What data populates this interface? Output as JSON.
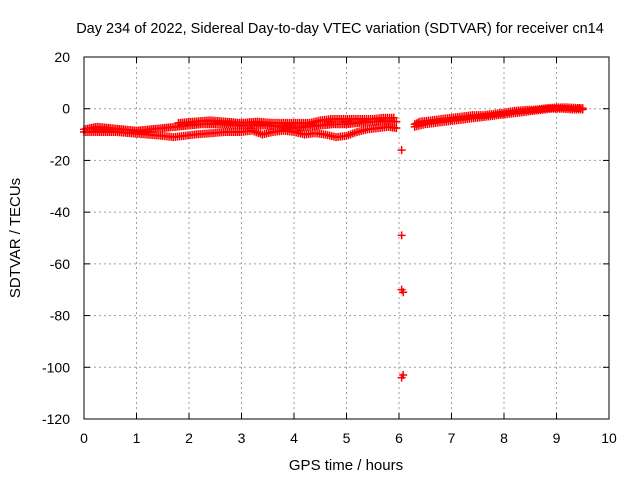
{
  "chart_data": {
    "type": "scatter",
    "title": "Day 234 of 2022, Sidereal Day-to-day VTEC variation (SDTVAR) for receiver cn14",
    "xlabel": "GPS time / hours",
    "ylabel": "SDTVAR / TECUs",
    "xlim": [
      0,
      10
    ],
    "ylim": [
      -120,
      20
    ],
    "xticks": [
      0,
      1,
      2,
      3,
      4,
      5,
      6,
      7,
      8,
      9,
      10
    ],
    "yticks": [
      20,
      0,
      -20,
      -40,
      -60,
      -80,
      -100,
      -120
    ],
    "grid": true,
    "marker": "plus",
    "color": "#ff0000",
    "series": [
      {
        "name": "main-band",
        "points": [
          [
            0.0,
            -8
          ],
          [
            0.25,
            -7
          ],
          [
            0.5,
            -7.5
          ],
          [
            0.75,
            -8
          ],
          [
            1.0,
            -8.5
          ],
          [
            1.25,
            -8
          ],
          [
            1.5,
            -7.5
          ],
          [
            1.75,
            -7
          ],
          [
            2.0,
            -6.5
          ],
          [
            2.25,
            -6
          ],
          [
            2.5,
            -6
          ],
          [
            2.75,
            -6
          ],
          [
            3.0,
            -6.5
          ],
          [
            3.25,
            -6.5
          ],
          [
            3.5,
            -6.5
          ],
          [
            3.75,
            -7
          ],
          [
            4.0,
            -7.5
          ],
          [
            4.25,
            -7
          ],
          [
            4.5,
            -6.5
          ],
          [
            4.75,
            -6
          ],
          [
            5.0,
            -6
          ],
          [
            5.25,
            -5.5
          ],
          [
            5.5,
            -5
          ],
          [
            5.75,
            -5
          ],
          [
            5.95,
            -5
          ]
        ]
      },
      {
        "name": "lower-track",
        "points": [
          [
            0.0,
            -9
          ],
          [
            0.3,
            -9
          ],
          [
            0.6,
            -9
          ],
          [
            0.9,
            -9.5
          ],
          [
            1.2,
            -10
          ],
          [
            1.5,
            -10.5
          ],
          [
            1.7,
            -11
          ],
          [
            1.9,
            -10.5
          ],
          [
            2.1,
            -10
          ],
          [
            2.4,
            -9.5
          ],
          [
            2.7,
            -9
          ],
          [
            3.0,
            -9
          ],
          [
            3.2,
            -8.5
          ],
          [
            3.4,
            -10
          ],
          [
            3.6,
            -9
          ],
          [
            3.8,
            -8.5
          ],
          [
            4.0,
            -9
          ],
          [
            4.2,
            -10
          ],
          [
            4.4,
            -9.5
          ],
          [
            4.6,
            -10
          ],
          [
            4.8,
            -11
          ],
          [
            5.0,
            -10.5
          ],
          [
            5.2,
            -9
          ],
          [
            5.4,
            -8
          ],
          [
            5.6,
            -7.5
          ],
          [
            5.8,
            -7
          ],
          [
            5.95,
            -7.5
          ]
        ]
      },
      {
        "name": "upper-track",
        "points": [
          [
            1.8,
            -5.5
          ],
          [
            2.1,
            -5
          ],
          [
            2.4,
            -4.5
          ],
          [
            2.7,
            -5
          ],
          [
            3.0,
            -5.5
          ],
          [
            3.3,
            -5
          ],
          [
            3.6,
            -5.5
          ],
          [
            4.3,
            -5.5
          ],
          [
            4.5,
            -4.5
          ],
          [
            4.7,
            -4
          ],
          [
            4.9,
            -4
          ],
          [
            5.1,
            -4
          ],
          [
            5.3,
            -4
          ],
          [
            5.5,
            -4
          ],
          [
            5.7,
            -3.5
          ],
          [
            5.9,
            -3.5
          ]
        ]
      },
      {
        "name": "after-gap",
        "points": [
          [
            6.3,
            -6
          ],
          [
            6.4,
            -5
          ],
          [
            6.6,
            -4.5
          ],
          [
            6.8,
            -4
          ],
          [
            7.0,
            -3.5
          ],
          [
            7.2,
            -3
          ],
          [
            7.4,
            -2.5
          ],
          [
            7.6,
            -2.5
          ],
          [
            7.8,
            -2
          ],
          [
            8.0,
            -1.5
          ],
          [
            8.2,
            -0.8
          ],
          [
            8.4,
            -0.5
          ],
          [
            8.6,
            -0.3
          ],
          [
            8.8,
            0.2
          ],
          [
            9.0,
            0.5
          ],
          [
            9.2,
            0.5
          ],
          [
            9.4,
            0.3
          ],
          [
            9.5,
            0.2
          ]
        ]
      },
      {
        "name": "after-gap-lower",
        "points": [
          [
            6.3,
            -7
          ],
          [
            6.5,
            -6
          ],
          [
            6.7,
            -5.5
          ],
          [
            6.9,
            -5
          ],
          [
            7.1,
            -4.5
          ],
          [
            7.3,
            -4
          ],
          [
            7.5,
            -3.5
          ],
          [
            7.7,
            -3
          ],
          [
            7.9,
            -2.5
          ],
          [
            8.1,
            -2
          ],
          [
            8.3,
            -1.5
          ],
          [
            8.5,
            -1
          ],
          [
            8.7,
            -0.5
          ],
          [
            8.9,
            0
          ],
          [
            9.1,
            0
          ],
          [
            9.3,
            -0.3
          ],
          [
            9.5,
            -0.3
          ]
        ]
      },
      {
        "name": "outliers",
        "points": [
          [
            6.05,
            -16
          ],
          [
            6.05,
            -49
          ],
          [
            6.05,
            -70
          ],
          [
            6.08,
            -71
          ],
          [
            6.05,
            -104
          ],
          [
            6.08,
            -103
          ]
        ]
      }
    ]
  }
}
